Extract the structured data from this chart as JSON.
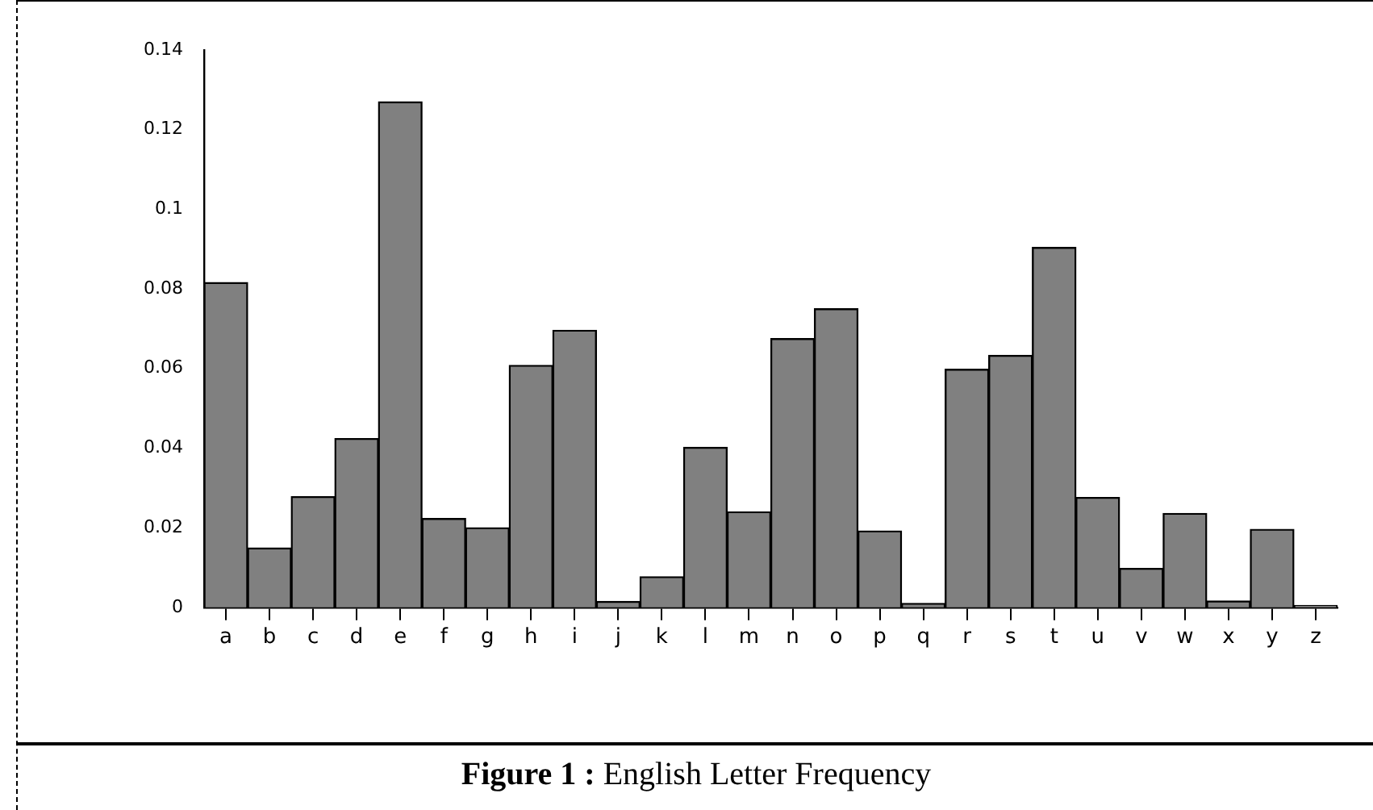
{
  "chart_data": {
    "type": "bar",
    "title": "Figure 1 : English Letter Frequency",
    "categories": [
      "a",
      "b",
      "c",
      "d",
      "e",
      "f",
      "g",
      "h",
      "i",
      "j",
      "k",
      "l",
      "m",
      "n",
      "o",
      "p",
      "q",
      "r",
      "s",
      "t",
      "u",
      "v",
      "w",
      "x",
      "y",
      "z"
    ],
    "values": [
      0.0816,
      0.0149,
      0.0278,
      0.0424,
      0.127,
      0.0223,
      0.02,
      0.0608,
      0.0696,
      0.0015,
      0.0077,
      0.0402,
      0.024,
      0.0675,
      0.075,
      0.0192,
      0.001,
      0.0598,
      0.0633,
      0.0904,
      0.0276,
      0.0098,
      0.0236,
      0.0016,
      0.0196,
      0.0005
    ],
    "color": "#808080",
    "ylim": [
      0,
      0.14
    ],
    "yticks": [
      0,
      0.02,
      0.04,
      0.06,
      0.08,
      0.1,
      0.12,
      0.14
    ],
    "grid": false,
    "legend": false
  }
}
